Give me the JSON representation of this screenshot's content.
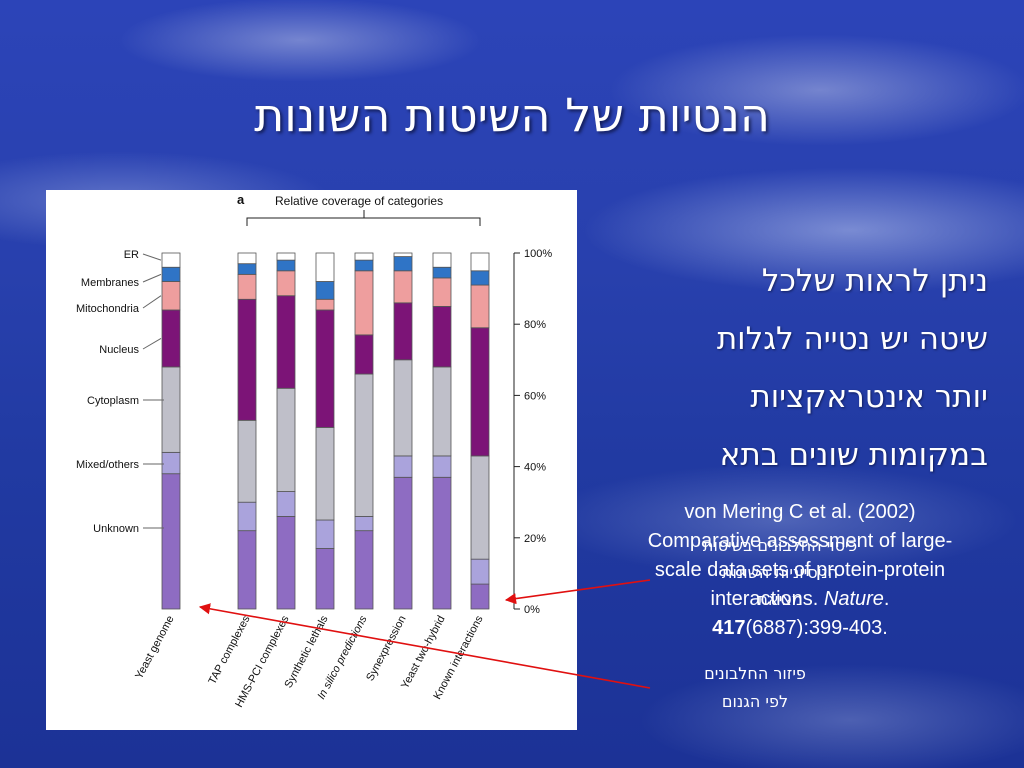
{
  "slide": {
    "title": "הנטיות של השיטות השונות",
    "paragraph": [
      "ניתן לראות שלכל",
      "שיטה יש נטייה לגלות",
      "יותר אינטראקציות",
      "במקומות שונים בתא"
    ],
    "citation": {
      "line1": "von Mering C et al. (2002)",
      "line2": "Comparative assessment of large-",
      "line3": "scale data sets of protein-protein",
      "line4_pre": "interactions. ",
      "journal": "Nature",
      "line4_post": ".",
      "volume": "417",
      "pages": "(6887):399-403."
    },
    "overlay_note": [
      "כיסוי החלבונים בשיטות",
      "הניסיוניות השונות",
      "מציאת"
    ],
    "caption": [
      "פיזור החלבונים",
      "לפי הגנום"
    ]
  },
  "chart_data": {
    "type": "bar",
    "panel_label": "a",
    "title": "Relative coverage of categories",
    "stacked": true,
    "categories": [
      "Yeast genome",
      "TAP complexes",
      "HMS-PCI complexes",
      "Synthetic lethals",
      "In silico predictions",
      "Synexpression",
      "Yeast two-hybrid",
      "Known interactions"
    ],
    "series": [
      {
        "name": "Unknown",
        "color": "#8e6cc2",
        "values": [
          38,
          22,
          26,
          17,
          22,
          37,
          37,
          7
        ]
      },
      {
        "name": "Mixed/others",
        "color": "#aaa3dc",
        "values": [
          6,
          8,
          7,
          8,
          4,
          6,
          6,
          7
        ]
      },
      {
        "name": "Cytoplasm",
        "color": "#bfbfc9",
        "values": [
          24,
          23,
          29,
          26,
          40,
          27,
          25,
          29
        ]
      },
      {
        "name": "Nucleus",
        "color": "#7c1477",
        "values": [
          16,
          34,
          26,
          33,
          11,
          16,
          17,
          36
        ]
      },
      {
        "name": "Mitochondria",
        "color": "#ee9e9e",
        "values": [
          8,
          7,
          7,
          3,
          18,
          9,
          8,
          12
        ]
      },
      {
        "name": "Membranes",
        "color": "#2f74c6",
        "values": [
          4,
          3,
          3,
          5,
          3,
          4,
          3,
          4
        ]
      },
      {
        "name": "ER",
        "color": "#ffffff",
        "values": [
          4,
          3,
          2,
          8,
          2,
          1,
          4,
          5
        ]
      }
    ],
    "yticks": [
      "0%",
      "20%",
      "40%",
      "60%",
      "80%",
      "100%"
    ],
    "ylim": [
      0,
      100
    ]
  }
}
